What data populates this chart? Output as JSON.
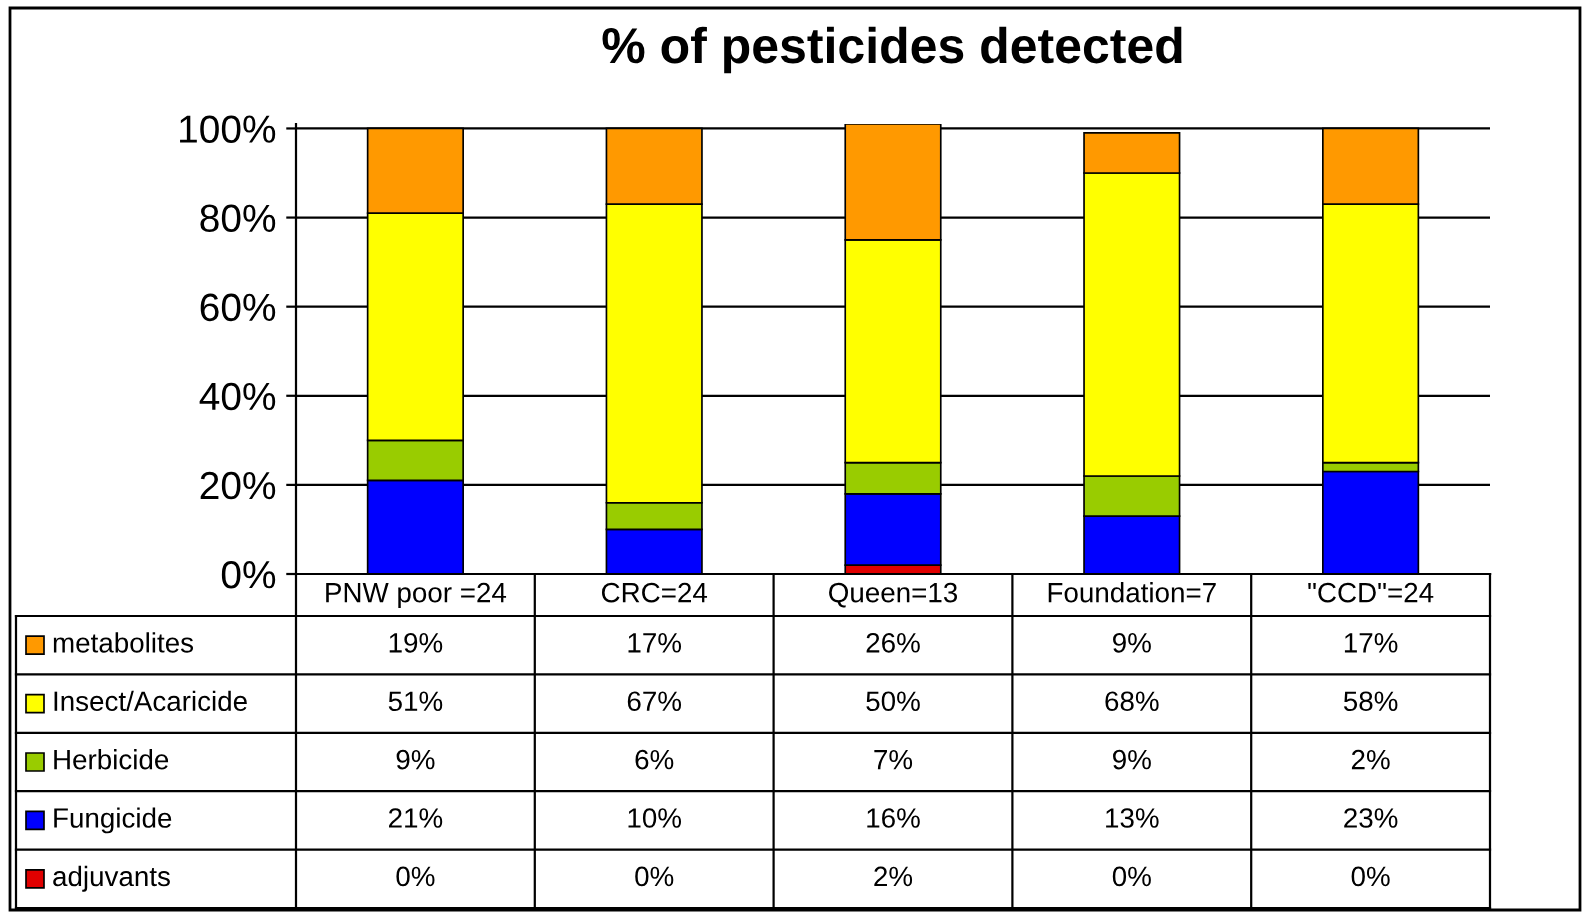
{
  "chart_data": {
    "type": "bar",
    "stacked": true,
    "title": "% of pesticides detected",
    "categories": [
      "PNW poor =24",
      "CRC=24",
      "Queen=13",
      "Foundation=7",
      "\"CCD\"=24"
    ],
    "series": [
      {
        "name": "adjuvants",
        "color": "#e00000",
        "values": [
          0,
          0,
          2,
          0,
          0
        ],
        "value_labels": [
          "0%",
          "0%",
          "2%",
          "0%",
          "0%"
        ]
      },
      {
        "name": "Fungicide",
        "color": "#0000ff",
        "values": [
          21,
          10,
          16,
          13,
          23
        ],
        "value_labels": [
          "21%",
          "10%",
          "16%",
          "13%",
          "23%"
        ]
      },
      {
        "name": "Herbicide",
        "color": "#99cc00",
        "values": [
          9,
          6,
          7,
          9,
          2
        ],
        "value_labels": [
          "9%",
          "6%",
          "7%",
          "9%",
          "2%"
        ]
      },
      {
        "name": "Insect/Acaricide",
        "color": "#ffff00",
        "values": [
          51,
          67,
          50,
          68,
          58
        ],
        "value_labels": [
          "51%",
          "67%",
          "50%",
          "68%",
          "58%"
        ]
      },
      {
        "name": "metabolites",
        "color": "#ff9900",
        "values": [
          19,
          17,
          26,
          9,
          17
        ],
        "value_labels": [
          "19%",
          "17%",
          "26%",
          "9%",
          "17%"
        ]
      }
    ],
    "ylim": [
      0,
      101
    ],
    "yticks": [
      {
        "value": 0,
        "label": "0%"
      },
      {
        "value": 20,
        "label": "20%"
      },
      {
        "value": 40,
        "label": "40%"
      },
      {
        "value": 60,
        "label": "60%"
      },
      {
        "value": 80,
        "label": "80%"
      },
      {
        "value": 100,
        "label": "100%"
      }
    ],
    "grid": "y",
    "legend": "bottom"
  }
}
